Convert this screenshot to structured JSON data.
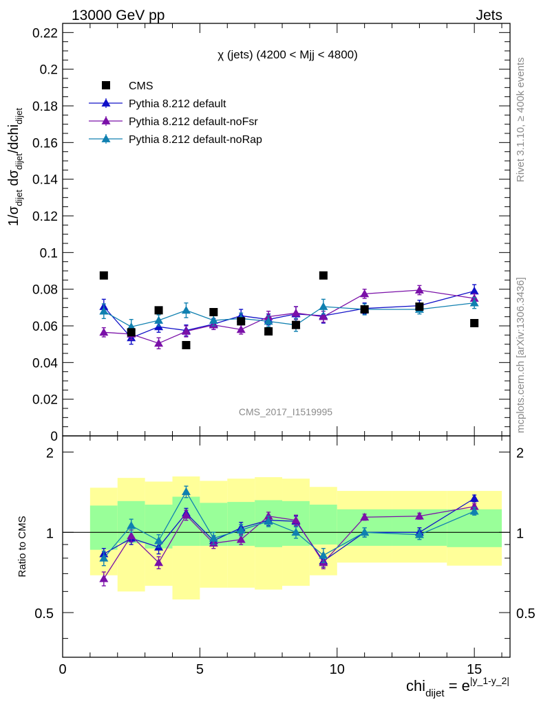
{
  "header": {
    "left": "13000 GeV pp",
    "right": "Jets"
  },
  "side_labels": {
    "rivet": "Rivet 3.1.10, ≥ 400k events",
    "mcplots": "mcplots.cern.ch [arXiv:1306.3436]"
  },
  "watermark": "CMS_2017_I1519995",
  "colors": {
    "cms": "#000000",
    "default": "#1010c8",
    "noFsr": "#7a10a8",
    "noRap": "#1080b0",
    "band_inner": "#99ff99",
    "band_outer": "#ffff99"
  },
  "chart_data": [
    {
      "type": "scatter",
      "title": "χ (jets) (4200 < Mjj < 4800)",
      "ylabel": "1/σdijet dσdijet/dchidijet",
      "ylim": [
        0,
        0.225
      ],
      "xlim": [
        0,
        16.3
      ],
      "yticks": [
        "0",
        "0.02",
        "0.04",
        "0.06",
        "0.08",
        "0.1",
        "0.12",
        "0.14",
        "0.16",
        "0.18",
        "0.2",
        "0.22"
      ],
      "legend_position": "top-left",
      "series": [
        {
          "name": "CMS",
          "marker": "square",
          "x": [
            1.5,
            2.5,
            3.5,
            4.5,
            5.5,
            6.5,
            7.5,
            8.5,
            9.5,
            11,
            13,
            15
          ],
          "y": [
            0.0875,
            0.0565,
            0.0685,
            0.0495,
            0.0675,
            0.0625,
            0.057,
            0.0605,
            0.0875,
            0.069,
            0.0705,
            0.0615
          ]
        },
        {
          "name": "Pythia 8.212 default",
          "marker": "triangle",
          "x": [
            1.5,
            2.5,
            3.5,
            4.5,
            5.5,
            6.5,
            7.5,
            8.5,
            9.5,
            11,
            13,
            15
          ],
          "y": [
            0.0705,
            0.0535,
            0.0595,
            0.0575,
            0.061,
            0.0655,
            0.0635,
            0.0665,
            0.0655,
            0.0695,
            0.071,
            0.079
          ],
          "yerr": [
            0.004,
            0.0035,
            0.003,
            0.003,
            0.003,
            0.0035,
            0.003,
            0.004,
            0.004,
            0.003,
            0.003,
            0.0035
          ]
        },
        {
          "name": "Pythia 8.212 default-noFsr",
          "marker": "triangle",
          "x": [
            1.5,
            2.5,
            3.5,
            4.5,
            5.5,
            6.5,
            7.5,
            8.5,
            9.5,
            11,
            13,
            15
          ],
          "y": [
            0.0565,
            0.0555,
            0.0505,
            0.057,
            0.0605,
            0.058,
            0.065,
            0.067,
            0.065,
            0.0775,
            0.0795,
            0.075
          ],
          "yerr": [
            0.0025,
            0.003,
            0.003,
            0.003,
            0.0025,
            0.0025,
            0.003,
            0.0035,
            0.003,
            0.0025,
            0.0025,
            0.0025
          ]
        },
        {
          "name": "Pythia 8.212 default-noRap",
          "marker": "triangle",
          "x": [
            1.5,
            2.5,
            3.5,
            4.5,
            5.5,
            6.5,
            7.5,
            8.5,
            9.5,
            11,
            13,
            15
          ],
          "y": [
            0.068,
            0.0595,
            0.063,
            0.0685,
            0.063,
            0.064,
            0.0625,
            0.0605,
            0.0705,
            0.069,
            0.069,
            0.0725
          ],
          "yerr": [
            0.004,
            0.004,
            0.003,
            0.004,
            0.003,
            0.003,
            0.003,
            0.0035,
            0.004,
            0.003,
            0.0025,
            0.003
          ]
        }
      ]
    },
    {
      "type": "scatter",
      "ylabel": "Ratio to CMS",
      "xlabel": "chidijet = e|y_1-y_2|",
      "ylim": [
        0.34,
        2.3
      ],
      "xlim": [
        0,
        16.3
      ],
      "xticks": [
        "0",
        "5",
        "10",
        "15"
      ],
      "yticks": [
        "0.5",
        "1",
        "2"
      ],
      "bins": [
        [
          1,
          2
        ],
        [
          2,
          3
        ],
        [
          3,
          4
        ],
        [
          4,
          5
        ],
        [
          5,
          6
        ],
        [
          6,
          7
        ],
        [
          7,
          8
        ],
        [
          8,
          9
        ],
        [
          9,
          10
        ],
        [
          10,
          12
        ],
        [
          12,
          14
        ],
        [
          14,
          16
        ]
      ],
      "band_inner": [
        [
          0.86,
          1.26
        ],
        [
          0.91,
          1.31
        ],
        [
          0.87,
          1.27
        ],
        [
          0.89,
          1.36
        ],
        [
          0.89,
          1.29
        ],
        [
          0.89,
          1.3
        ],
        [
          0.88,
          1.32
        ],
        [
          0.89,
          1.31
        ],
        [
          0.9,
          1.27
        ],
        [
          0.89,
          1.22
        ],
        [
          0.89,
          1.22
        ],
        [
          0.88,
          1.22
        ]
      ],
      "band_outer": [
        [
          0.69,
          1.47
        ],
        [
          0.6,
          1.6
        ],
        [
          0.63,
          1.55
        ],
        [
          0.56,
          1.62
        ],
        [
          0.62,
          1.56
        ],
        [
          0.62,
          1.59
        ],
        [
          0.61,
          1.61
        ],
        [
          0.63,
          1.59
        ],
        [
          0.69,
          1.48
        ],
        [
          0.77,
          1.43
        ],
        [
          0.77,
          1.43
        ],
        [
          0.75,
          1.43
        ]
      ],
      "series": [
        {
          "name": "Pythia 8.212 default",
          "x": [
            1.5,
            2.5,
            3.5,
            4.5,
            5.5,
            6.5,
            7.5,
            8.5,
            9.5,
            11,
            13,
            15
          ],
          "y": [
            0.83,
            0.95,
            0.88,
            1.18,
            0.93,
            1.04,
            1.11,
            1.1,
            0.78,
            1.0,
            1.0,
            1.34
          ],
          "yerr": [
            0.04,
            0.05,
            0.05,
            0.05,
            0.04,
            0.05,
            0.05,
            0.05,
            0.04,
            0.04,
            0.04,
            0.04
          ]
        },
        {
          "name": "Pythia 8.212 default-noFsr",
          "x": [
            1.5,
            2.5,
            3.5,
            4.5,
            5.5,
            6.5,
            7.5,
            8.5,
            9.5,
            11,
            13,
            15
          ],
          "y": [
            0.67,
            0.97,
            0.77,
            1.16,
            0.91,
            0.94,
            1.15,
            1.11,
            0.77,
            1.14,
            1.15,
            1.25
          ],
          "yerr": [
            0.04,
            0.05,
            0.04,
            0.05,
            0.04,
            0.04,
            0.04,
            0.05,
            0.04,
            0.03,
            0.03,
            0.03
          ]
        },
        {
          "name": "Pythia 8.212 default-noRap",
          "x": [
            1.5,
            2.5,
            3.5,
            4.5,
            5.5,
            6.5,
            7.5,
            8.5,
            9.5,
            11,
            13,
            15
          ],
          "y": [
            0.8,
            1.06,
            0.93,
            1.42,
            0.95,
            1.02,
            1.1,
            1.0,
            0.82,
            1.0,
            0.98,
            1.2
          ],
          "yerr": [
            0.05,
            0.06,
            0.05,
            0.07,
            0.05,
            0.05,
            0.05,
            0.05,
            0.05,
            0.04,
            0.04,
            0.04
          ]
        }
      ]
    }
  ]
}
